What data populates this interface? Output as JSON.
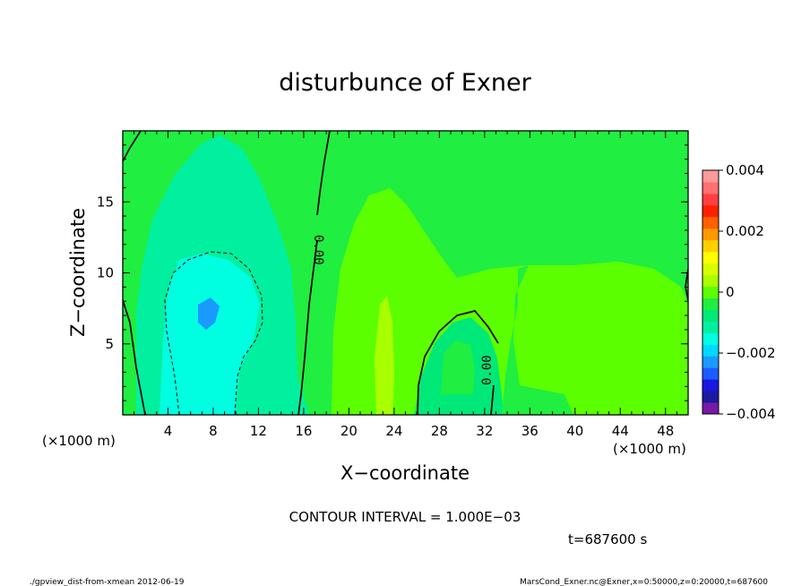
{
  "chart_data": {
    "type": "contour",
    "title": "disturbunce of Exner",
    "xlabel": "X−coordinate",
    "ylabel": "Z−coordinate",
    "x_unit_label": "(×1000 m)",
    "y_unit_label": "(×1000 m)",
    "xlim": [
      0,
      50
    ],
    "ylim": [
      0,
      20
    ],
    "x_ticks": [
      4,
      8,
      12,
      16,
      20,
      24,
      28,
      32,
      36,
      40,
      44,
      48
    ],
    "y_ticks": [
      5,
      10,
      15
    ],
    "contour_interval_text": "CONTOUR INTERVAL = 1.000E−03",
    "contour_labels": [
      {
        "text": "0.00",
        "x": 17,
        "y": 13
      },
      {
        "text": "0.00",
        "x": 32.3,
        "y": 3.5
      }
    ],
    "colorbar": {
      "range": [
        -0.004,
        0.004
      ],
      "tick_labels": [
        "0.004",
        "0.002",
        "0",
        "−0.002",
        "−0.004"
      ],
      "tick_values": [
        0.004,
        0.002,
        0,
        -0.002,
        -0.004
      ],
      "colors": [
        "#7a18a8",
        "#1a1aa0",
        "#1818e0",
        "#1a5cff",
        "#1a9aff",
        "#00d8ff",
        "#00ffe0",
        "#00f0a0",
        "#00e878",
        "#20ee40",
        "#5cff00",
        "#a8ff00",
        "#d8ff00",
        "#ffff00",
        "#ffd000",
        "#ff9800",
        "#ff6000",
        "#ff2000",
        "#ff4040",
        "#ff7070",
        "#ff9a9a"
      ]
    },
    "fields": [
      {
        "region": "background",
        "value": 0.0,
        "color": "#20ee40"
      },
      {
        "region": "cold pool left",
        "x_range": [
          3,
          14
        ],
        "y_range": [
          0,
          18
        ],
        "value": -0.0007,
        "color": "#00f0a0"
      },
      {
        "region": "core",
        "x_range": [
          5,
          11
        ],
        "y_range": [
          0,
          11
        ],
        "value": -0.0015,
        "color": "#00ffe0"
      },
      {
        "region": "minimum",
        "x": 7.8,
        "y": 7.5,
        "value": -0.002,
        "color": "#1a9aff"
      },
      {
        "region": "right lobes",
        "x_range": [
          17,
          50
        ],
        "y_range": [
          0,
          16
        ],
        "value": 0.0005,
        "color": "#5cff00"
      },
      {
        "region": "streak",
        "x": 23,
        "y": 4,
        "value": 0.0008,
        "color": "#a8ff00"
      },
      {
        "region": "bubble",
        "x_range": [
          26,
          32
        ],
        "y_range": [
          0,
          7
        ],
        "value": -0.0004,
        "color": "#00e878"
      }
    ]
  },
  "time_label": "t=687600 s",
  "footer_left": "./gpview_dist-from-xmean   2012-06-19",
  "footer_right": "MarsCond_Exner.nc@Exner,x=0:50000,z=0:20000,t=687600"
}
